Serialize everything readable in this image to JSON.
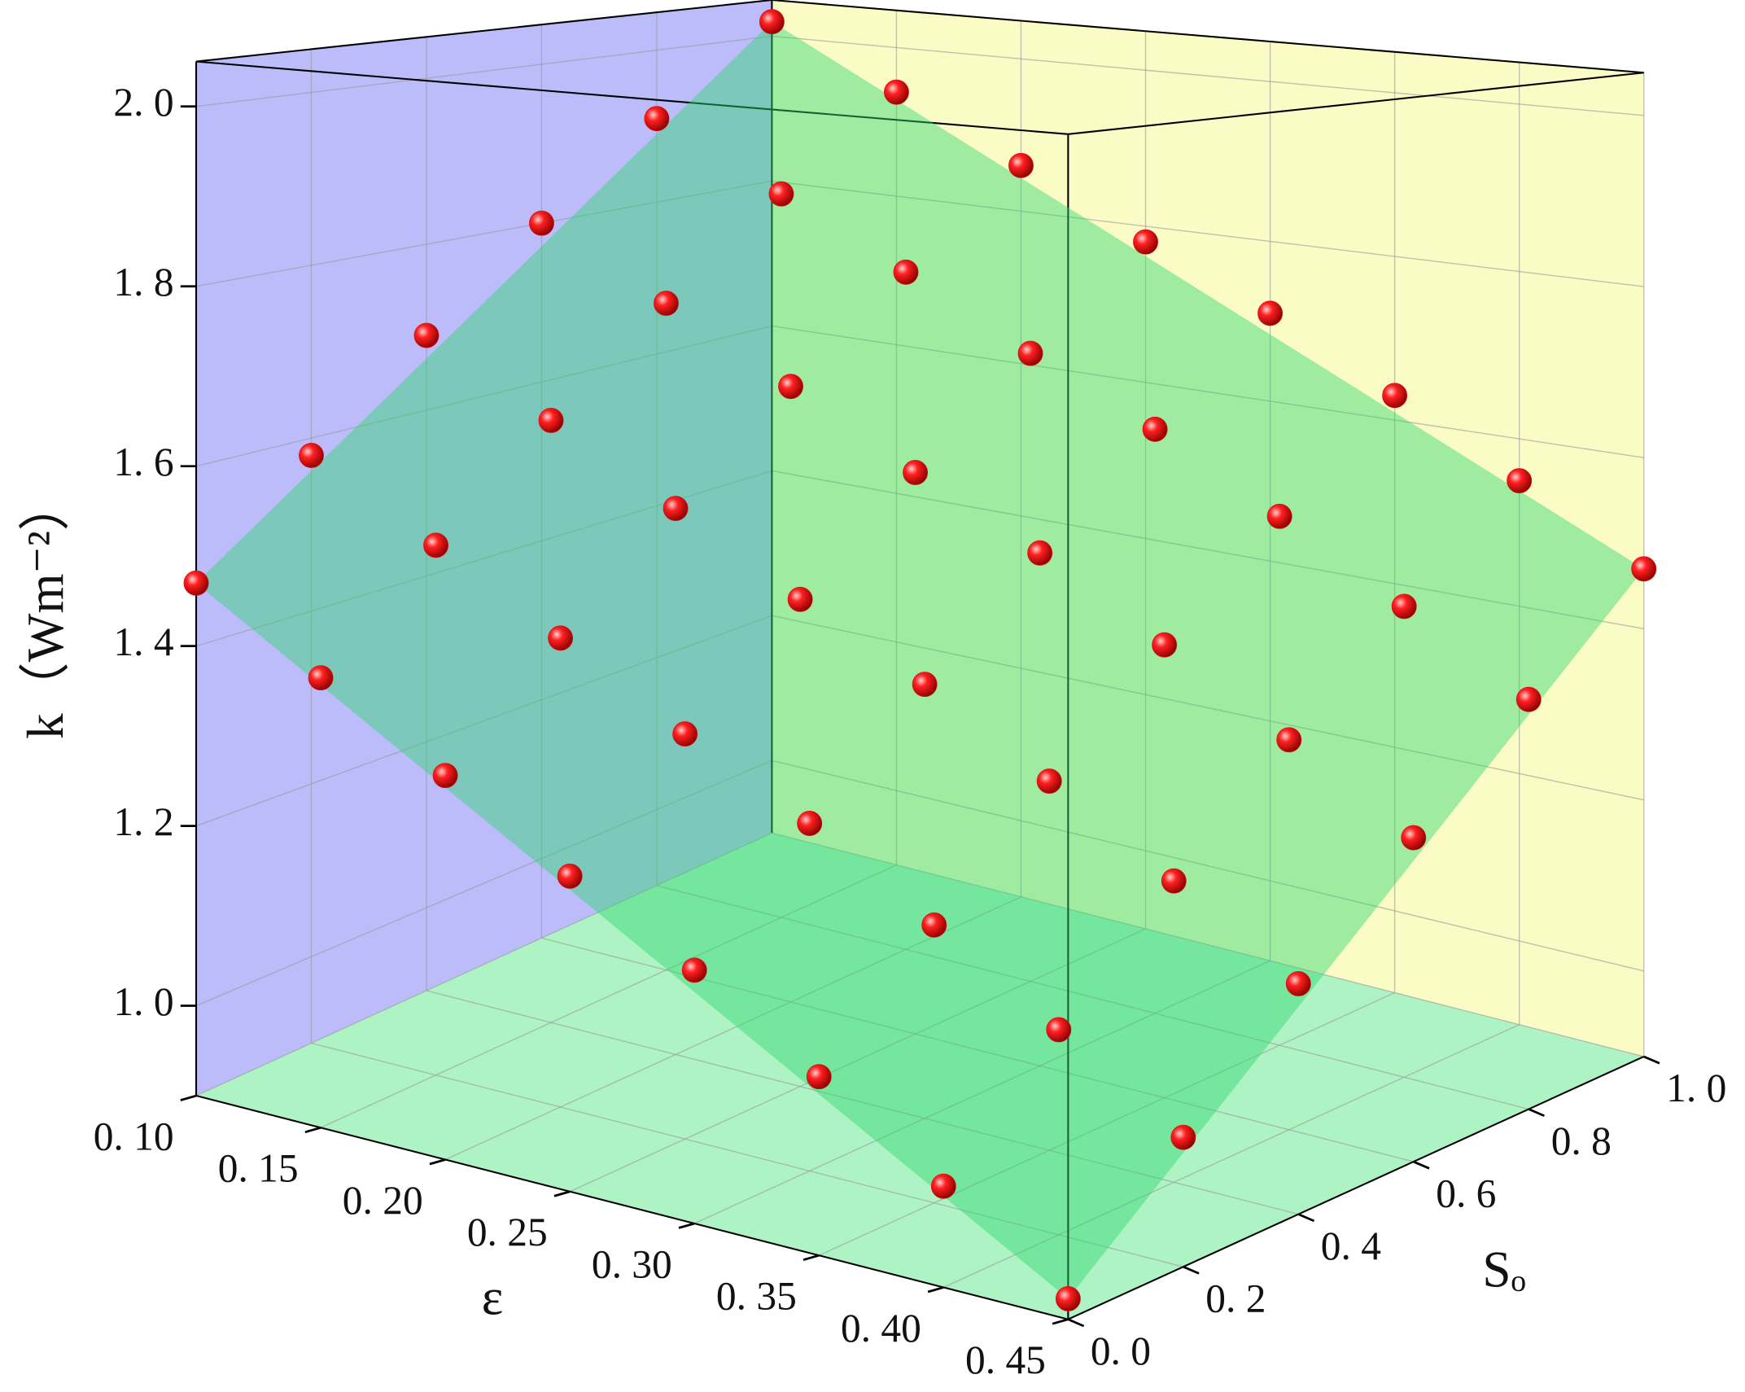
{
  "chart_data": {
    "type": "scatter3d",
    "xlabel": "ε",
    "ylabel": "Sₒ",
    "zlabel": "k（Wm⁻²）",
    "xlim": [
      0.1,
      0.45
    ],
    "ylim": [
      0.0,
      1.0
    ],
    "zlim": [
      0.9,
      2.05
    ],
    "xticks": [
      {
        "value": 0.1,
        "label": "0. 10"
      },
      {
        "value": 0.15,
        "label": "0. 15"
      },
      {
        "value": 0.2,
        "label": "0. 20"
      },
      {
        "value": 0.25,
        "label": "0. 25"
      },
      {
        "value": 0.3,
        "label": "0. 30"
      },
      {
        "value": 0.35,
        "label": "0. 35"
      },
      {
        "value": 0.4,
        "label": "0. 40"
      },
      {
        "value": 0.45,
        "label": "0. 45"
      }
    ],
    "yticks": [
      {
        "value": 0.0,
        "label": "0. 0"
      },
      {
        "value": 0.2,
        "label": "0. 2"
      },
      {
        "value": 0.4,
        "label": "0. 4"
      },
      {
        "value": 0.6,
        "label": "0. 6"
      },
      {
        "value": 0.8,
        "label": "0. 8"
      },
      {
        "value": 1.0,
        "label": "1. 0"
      }
    ],
    "zticks": [
      {
        "value": 1.0,
        "label": "1. 0"
      },
      {
        "value": 1.2,
        "label": "1. 2"
      },
      {
        "value": 1.4,
        "label": "1. 4"
      },
      {
        "value": 1.6,
        "label": "1. 6"
      },
      {
        "value": 1.8,
        "label": "1. 8"
      },
      {
        "value": 2.0,
        "label": "2. 0"
      }
    ],
    "grid": true,
    "wall_colors": {
      "x_wall": "#bcbcfa",
      "y_wall": "#fbfbc6",
      "floor": "#aef3c4"
    },
    "surface_color": "#2fd86e",
    "color": "#e0101a",
    "x": [
      0.1,
      0.1,
      0.1,
      0.1,
      0.1,
      0.1,
      0.15,
      0.15,
      0.15,
      0.15,
      0.15,
      0.15,
      0.2,
      0.2,
      0.2,
      0.2,
      0.2,
      0.2,
      0.25,
      0.25,
      0.25,
      0.25,
      0.25,
      0.25,
      0.3,
      0.3,
      0.3,
      0.3,
      0.3,
      0.3,
      0.35,
      0.35,
      0.35,
      0.35,
      0.35,
      0.35,
      0.4,
      0.4,
      0.4,
      0.4,
      0.4,
      0.4,
      0.45,
      0.45,
      0.45,
      0.45,
      0.45,
      0.45
    ],
    "y": [
      0.0,
      0.2,
      0.4,
      0.6,
      0.8,
      1.0,
      0.0,
      0.2,
      0.4,
      0.6,
      0.8,
      1.0,
      0.0,
      0.2,
      0.4,
      0.6,
      0.8,
      1.0,
      0.0,
      0.2,
      0.4,
      0.6,
      0.8,
      1.0,
      0.0,
      0.2,
      0.4,
      0.6,
      0.8,
      1.0,
      0.0,
      0.2,
      0.4,
      0.6,
      0.8,
      1.0,
      0.0,
      0.2,
      0.4,
      0.6,
      0.8,
      1.0,
      0.0,
      0.2,
      0.4,
      0.6,
      0.8,
      1.0
    ],
    "z": [
      1.47,
      1.58,
      1.69,
      1.8,
      1.91,
      2.02,
      1.39,
      1.5,
      1.61,
      1.72,
      1.83,
      1.94,
      1.31,
      1.42,
      1.53,
      1.64,
      1.75,
      1.86,
      1.23,
      1.34,
      1.45,
      1.56,
      1.67,
      1.78,
      1.16,
      1.27,
      1.38,
      1.49,
      1.6,
      1.71,
      1.08,
      1.19,
      1.3,
      1.41,
      1.52,
      1.63,
      1.0,
      1.11,
      1.22,
      1.33,
      1.44,
      1.55,
      0.92,
      1.03,
      1.14,
      1.25,
      1.36,
      1.47
    ]
  }
}
